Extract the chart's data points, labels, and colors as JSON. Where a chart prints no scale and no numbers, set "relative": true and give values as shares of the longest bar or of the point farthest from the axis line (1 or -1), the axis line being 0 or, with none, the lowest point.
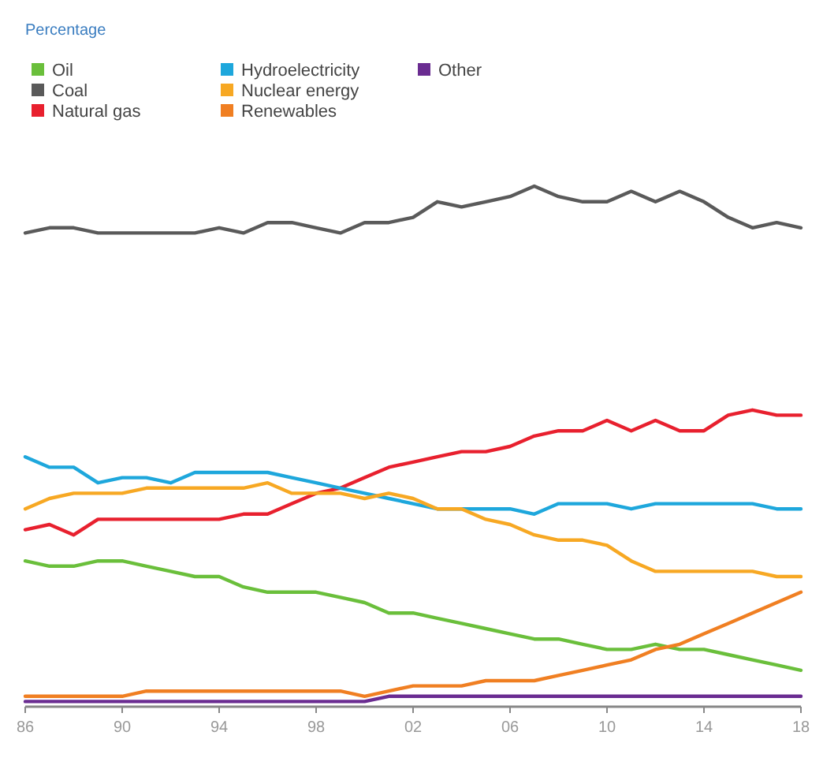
{
  "chart_data": {
    "type": "line",
    "annotations": [
      "Percentage"
    ],
    "relative": true,
    "legend": "top",
    "line_style": "solid",
    "marker": "none",
    "x": [
      1986,
      1987,
      1988,
      1989,
      1990,
      1991,
      1992,
      1993,
      1994,
      1995,
      1996,
      1997,
      1998,
      1999,
      2000,
      2001,
      2002,
      2003,
      2004,
      2005,
      2006,
      2007,
      2008,
      2009,
      2010,
      2011,
      2012,
      2013,
      2014,
      2015,
      2016,
      2017,
      2018
    ],
    "xlim": [
      1986,
      2018
    ],
    "xticks": [
      {
        "value": 1986,
        "label": "86"
      },
      {
        "value": 1990,
        "label": "90"
      },
      {
        "value": 1994,
        "label": "94"
      },
      {
        "value": 1998,
        "label": "98"
      },
      {
        "value": 2002,
        "label": "02"
      },
      {
        "value": 2006,
        "label": "06"
      },
      {
        "value": 2010,
        "label": "10"
      },
      {
        "value": 2014,
        "label": "14"
      },
      {
        "value": 2018,
        "label": "18"
      }
    ],
    "series": [
      {
        "name": "Oil",
        "color": "#6abf3b",
        "values": [
          0.28,
          0.27,
          0.27,
          0.28,
          0.28,
          0.27,
          0.26,
          0.25,
          0.25,
          0.23,
          0.22,
          0.22,
          0.22,
          0.21,
          0.2,
          0.18,
          0.18,
          0.17,
          0.16,
          0.15,
          0.14,
          0.13,
          0.13,
          0.12,
          0.11,
          0.11,
          0.12,
          0.11,
          0.11,
          0.1,
          0.09,
          0.08,
          0.07
        ]
      },
      {
        "name": "Coal",
        "color": "#5a5a5a",
        "values": [
          0.91,
          0.92,
          0.92,
          0.91,
          0.91,
          0.91,
          0.91,
          0.91,
          0.92,
          0.91,
          0.93,
          0.93,
          0.92,
          0.91,
          0.93,
          0.93,
          0.94,
          0.97,
          0.96,
          0.97,
          0.98,
          1,
          0.98,
          0.97,
          0.97,
          0.99,
          0.97,
          0.99,
          0.97,
          0.94,
          0.92,
          0.93,
          0.92
        ]
      },
      {
        "name": "Natural gas",
        "color": "#e8202e",
        "values": [
          0.34,
          0.35,
          0.33,
          0.36,
          0.36,
          0.36,
          0.36,
          0.36,
          0.36,
          0.37,
          0.37,
          0.39,
          0.41,
          0.42,
          0.44,
          0.46,
          0.47,
          0.48,
          0.49,
          0.49,
          0.5,
          0.52,
          0.53,
          0.53,
          0.55,
          0.53,
          0.55,
          0.53,
          0.53,
          0.56,
          0.57,
          0.56,
          0.56
        ]
      },
      {
        "name": "Hydroelectricity",
        "color": "#1ea7dc",
        "values": [
          0.48,
          0.46,
          0.46,
          0.43,
          0.44,
          0.44,
          0.43,
          0.45,
          0.45,
          0.45,
          0.45,
          0.44,
          0.43,
          0.42,
          0.41,
          0.4,
          0.39,
          0.38,
          0.38,
          0.38,
          0.38,
          0.37,
          0.39,
          0.39,
          0.39,
          0.38,
          0.39,
          0.39,
          0.39,
          0.39,
          0.39,
          0.38,
          0.38
        ]
      },
      {
        "name": "Nuclear energy",
        "color": "#f7a823",
        "values": [
          0.38,
          0.4,
          0.41,
          0.41,
          0.41,
          0.42,
          0.42,
          0.42,
          0.42,
          0.42,
          0.43,
          0.41,
          0.41,
          0.41,
          0.4,
          0.41,
          0.4,
          0.38,
          0.38,
          0.36,
          0.35,
          0.33,
          0.32,
          0.32,
          0.31,
          0.28,
          0.26,
          0.26,
          0.26,
          0.26,
          0.26,
          0.25,
          0.25
        ]
      },
      {
        "name": "Renewables",
        "color": "#f07f22",
        "values": [
          0.02,
          0.02,
          0.02,
          0.02,
          0.02,
          0.03,
          0.03,
          0.03,
          0.03,
          0.03,
          0.03,
          0.03,
          0.03,
          0.03,
          0.02,
          0.03,
          0.04,
          0.04,
          0.04,
          0.05,
          0.05,
          0.05,
          0.06,
          0.07,
          0.08,
          0.09,
          0.11,
          0.12,
          0.14,
          0.16,
          0.18,
          0.2,
          0.22
        ]
      },
      {
        "name": "Other",
        "color": "#6a2c91",
        "values": [
          0.01,
          0.01,
          0.01,
          0.01,
          0.01,
          0.01,
          0.01,
          0.01,
          0.01,
          0.01,
          0.01,
          0.01,
          0.01,
          0.01,
          0.01,
          0.02,
          0.02,
          0.02,
          0.02,
          0.02,
          0.02,
          0.02,
          0.02,
          0.02,
          0.02,
          0.02,
          0.02,
          0.02,
          0.02,
          0.02,
          0.02,
          0.02,
          0.02
        ]
      }
    ]
  }
}
